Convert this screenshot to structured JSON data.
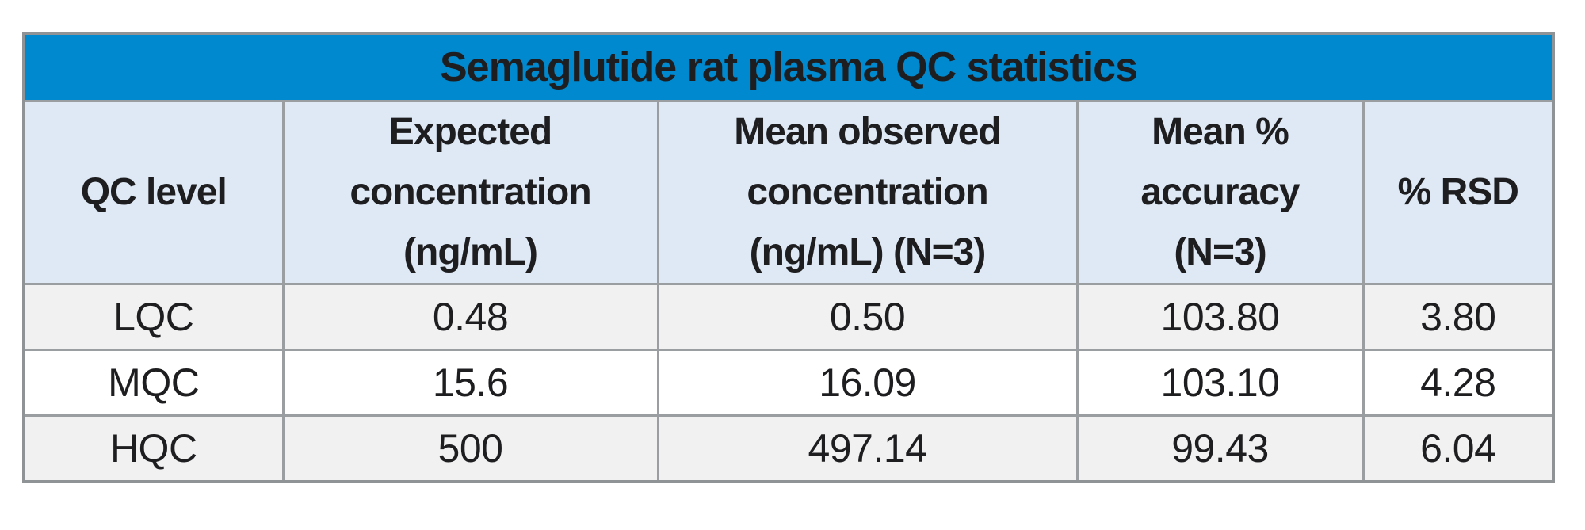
{
  "colors": {
    "title-bg": "#0089ce",
    "title-text": "#ffffff",
    "header-bg": "#dee9f5",
    "row-odd-bg": "#f1f1f2",
    "row-even-bg": "#ffffff",
    "border-outer": "#8f9396",
    "border-inner": "#9b9ea1",
    "text": "#1e1e20"
  },
  "table": {
    "title": "Semaglutide rat plasma QC statistics",
    "columns": [
      "QC level",
      "Expected\nconcentration\n(ng/mL)",
      "Mean observed\nconcentration\n(ng/mL) (N=3)",
      "Mean %\naccuracy\n(N=3)",
      "% RSD"
    ],
    "rows": [
      {
        "level": "LQC",
        "expected": "0.48",
        "observed": "0.50",
        "accuracy": "103.80",
        "rsd": "3.80"
      },
      {
        "level": "MQC",
        "expected": "15.6",
        "observed": "16.09",
        "accuracy": "103.10",
        "rsd": "4.28"
      },
      {
        "level": "HQC",
        "expected": "500",
        "observed": "497.14",
        "accuracy": "99.43",
        "rsd": "6.04"
      }
    ]
  },
  "chart_data": {
    "type": "table",
    "title": "Semaglutide rat plasma QC statistics",
    "columns": [
      "QC level",
      "Expected concentration (ng/mL)",
      "Mean observed concentration (ng/mL) (N=3)",
      "Mean % accuracy (N=3)",
      "% RSD"
    ],
    "rows": [
      [
        "LQC",
        0.48,
        0.5,
        103.8,
        3.8
      ],
      [
        "MQC",
        15.6,
        16.09,
        103.1,
        4.28
      ],
      [
        "HQC",
        500,
        497.14,
        99.43,
        6.04
      ]
    ]
  }
}
